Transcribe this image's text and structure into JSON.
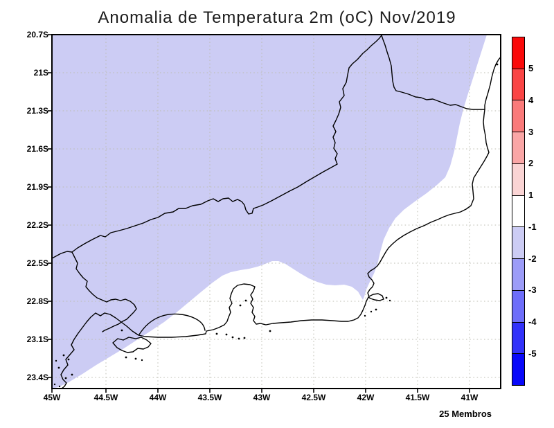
{
  "title": "Anomalia de Temperatura 2m (oC) Nov/2019",
  "annotation": "25 Membros",
  "axes": {
    "lat": [
      "20.7S",
      "21S",
      "21.3S",
      "21.6S",
      "21.9S",
      "22.2S",
      "22.5S",
      "22.8S",
      "23.1S",
      "23.4S"
    ],
    "lon": [
      "45W",
      "44.5W",
      "44W",
      "43.5W",
      "43W",
      "42.5W",
      "42W",
      "41.5W",
      "41W"
    ]
  },
  "colorbar": {
    "tick_labels": [
      "5",
      "4",
      "3",
      "2",
      "1",
      "-1",
      "-2",
      "-3",
      "-4",
      "-5"
    ],
    "segment_colors": [
      "#fa0a0a",
      "#fa4545",
      "#fa7a7a",
      "#faa6a6",
      "#fad4d4",
      "#ffffff",
      "#ccccf4",
      "#9c9cf8",
      "#6e6efa",
      "#3232fa",
      "#0808fa"
    ]
  },
  "map": {
    "shade_color": "#ccccf4",
    "coast_color": "#000000",
    "grid_color": "#bdbdb1",
    "shaded_value_range": "-2 to -1"
  },
  "chart_data": {
    "type": "heatmap",
    "title": "Anomalia de Temperatura 2m (oC) Nov/2019",
    "colorbar_levels": [
      5,
      4,
      3,
      2,
      1,
      -1,
      -2,
      -3,
      -4,
      -5
    ],
    "lat_ticks": [
      "20.7S",
      "21S",
      "21.3S",
      "21.6S",
      "21.9S",
      "22.2S",
      "22.5S",
      "22.8S",
      "23.1S",
      "23.4S"
    ],
    "lon_ticks": [
      "45W",
      "44.5W",
      "44W",
      "43.5W",
      "43W",
      "42.5W",
      "42W",
      "41.5W",
      "41W"
    ],
    "legend_note": "25 Membros",
    "depicted": "Anomaly in -2..-1 oC band shades the northwest/inland portion of the domain; near-zero (white) band along the east coast and southern ocean area"
  }
}
